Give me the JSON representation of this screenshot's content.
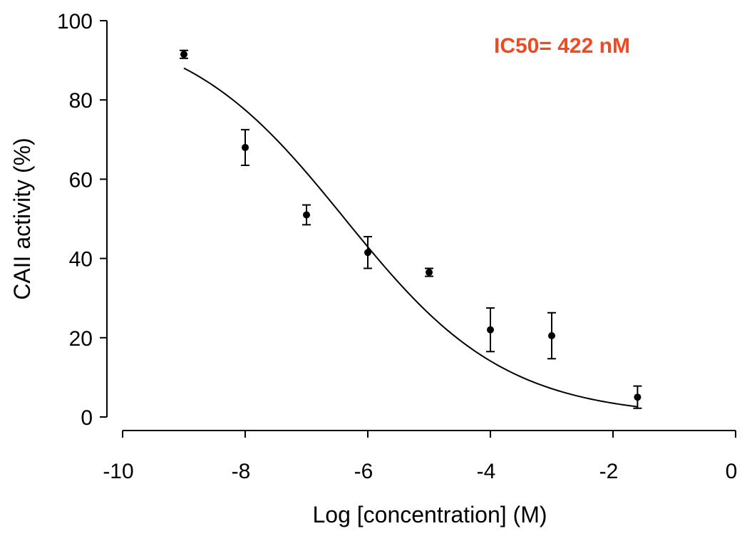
{
  "chart_data": {
    "type": "scatter",
    "title": "",
    "xlabel": "Log [concentration] (M)",
    "ylabel": "CAII activity (%)",
    "xlim": [
      -10,
      0
    ],
    "ylim": [
      0,
      100
    ],
    "x_ticks": [
      -10,
      -8,
      -6,
      -4,
      -2,
      0
    ],
    "y_ticks": [
      0,
      20,
      40,
      60,
      80,
      100
    ],
    "grid": false,
    "annotation": "IC50= 422 nM",
    "annotation_color": "#f04a23",
    "series": [
      {
        "points": [
          {
            "x": -9.0,
            "y": 91.5,
            "err": 1.0
          },
          {
            "x": -8.0,
            "y": 68.0,
            "err": 4.5
          },
          {
            "x": -7.0,
            "y": 51.0,
            "err": 2.5
          },
          {
            "x": -6.0,
            "y": 41.5,
            "err": 4.0
          },
          {
            "x": -5.0,
            "y": 36.5,
            "err": 1.0
          },
          {
            "x": -4.0,
            "y": 22.0,
            "err": 5.5
          },
          {
            "x": -3.0,
            "y": 20.5,
            "err": 5.8
          },
          {
            "x": -1.6,
            "y": 5.0,
            "err": 2.8
          }
        ]
      }
    ],
    "fit_curve": {
      "top": 100,
      "bottom": 0,
      "log_ic50": -6.375,
      "hill_slope": -0.33,
      "x_start": -9.0,
      "x_end": -1.6
    }
  }
}
